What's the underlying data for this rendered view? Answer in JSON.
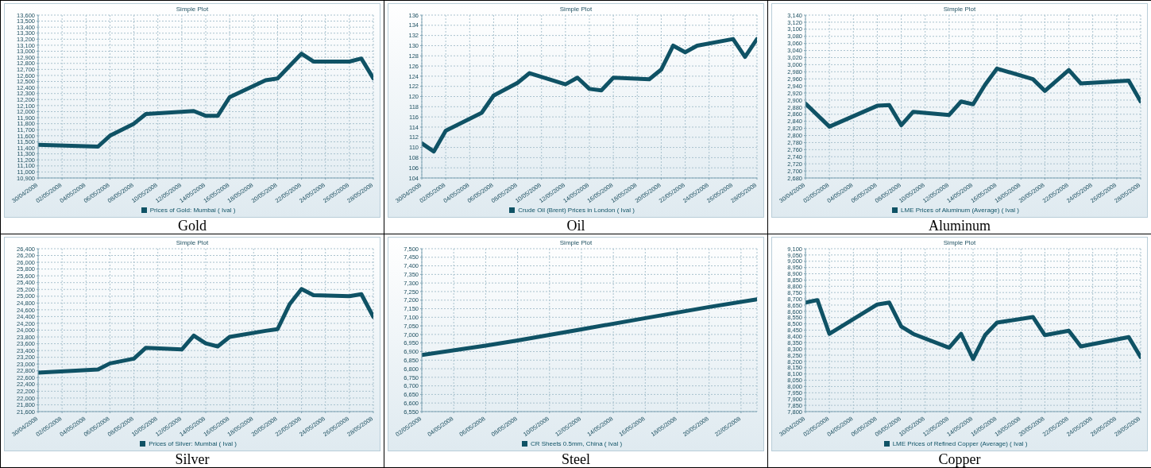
{
  "chart_data": [
    {
      "type": "line",
      "title": "Simple Plot",
      "annotations": [
        "Gold"
      ],
      "grid": true,
      "legend": "bottom",
      "x": [
        "2008-04-30",
        "2008-05-05",
        "2008-05-06",
        "2008-05-08",
        "2008-05-09",
        "2008-05-13",
        "2008-05-14",
        "2008-05-15",
        "2008-05-16",
        "2008-05-19",
        "2008-05-20",
        "2008-05-22",
        "2008-05-23",
        "2008-05-26",
        "2008-05-27",
        "2008-05-28"
      ],
      "series": [
        {
          "name": "Prices of Gold: Mumbai ( Ival )",
          "color": "#0f5265",
          "values": [
            11450,
            11420,
            11600,
            11800,
            11960,
            12010,
            11930,
            11930,
            12240,
            12520,
            12550,
            12960,
            12830,
            12830,
            12880,
            12550
          ]
        }
      ],
      "xlim": [
        "2008-04-30",
        "2008-05-28"
      ],
      "xticks": [
        {
          "value": "2008-04-30",
          "label": "30/04/2008"
        },
        {
          "value": "2008-05-02",
          "label": "02/05/2008"
        },
        {
          "value": "2008-05-04",
          "label": "04/05/2008"
        },
        {
          "value": "2008-05-06",
          "label": "06/05/2008"
        },
        {
          "value": "2008-05-08",
          "label": "08/05/2008"
        },
        {
          "value": "2008-05-10",
          "label": "10/05/2008"
        },
        {
          "value": "2008-05-12",
          "label": "12/05/2008"
        },
        {
          "value": "2008-05-14",
          "label": "14/05/2008"
        },
        {
          "value": "2008-05-16",
          "label": "16/05/2008"
        },
        {
          "value": "2008-05-18",
          "label": "18/05/2008"
        },
        {
          "value": "2008-05-20",
          "label": "20/05/2008"
        },
        {
          "value": "2008-05-22",
          "label": "22/05/2008"
        },
        {
          "value": "2008-05-24",
          "label": "24/05/2008"
        },
        {
          "value": "2008-05-26",
          "label": "26/05/2008"
        },
        {
          "value": "2008-05-28",
          "label": "28/05/2008"
        }
      ],
      "ylim": [
        10900,
        13600
      ],
      "yticks": [
        {
          "value": 10900,
          "label": "10,900"
        },
        {
          "value": 11000,
          "label": "11,000"
        },
        {
          "value": 11100,
          "label": "11,100"
        },
        {
          "value": 11200,
          "label": "11,200"
        },
        {
          "value": 11300,
          "label": "11,300"
        },
        {
          "value": 11400,
          "label": "11,400"
        },
        {
          "value": 11500,
          "label": "11,500"
        },
        {
          "value": 11600,
          "label": "11,600"
        },
        {
          "value": 11700,
          "label": "11,700"
        },
        {
          "value": 11800,
          "label": "11,800"
        },
        {
          "value": 11900,
          "label": "11,900"
        },
        {
          "value": 12000,
          "label": "12,000"
        },
        {
          "value": 12100,
          "label": "12,100"
        },
        {
          "value": 12200,
          "label": "12,200"
        },
        {
          "value": 12300,
          "label": "12,300"
        },
        {
          "value": 12400,
          "label": "12,400"
        },
        {
          "value": 12500,
          "label": "12,500"
        },
        {
          "value": 12600,
          "label": "12,600"
        },
        {
          "value": 12700,
          "label": "12,700"
        },
        {
          "value": 12800,
          "label": "12,800"
        },
        {
          "value": 12900,
          "label": "12,900"
        },
        {
          "value": 13000,
          "label": "13,000"
        },
        {
          "value": 13100,
          "label": "13,100"
        },
        {
          "value": 13200,
          "label": "13,200"
        },
        {
          "value": 13300,
          "label": "13,300"
        },
        {
          "value": 13400,
          "label": "13,400"
        },
        {
          "value": 13500,
          "label": "13,500"
        },
        {
          "value": 13600,
          "label": "13,600"
        }
      ]
    },
    {
      "type": "line",
      "title": "Simple Plot",
      "annotations": [
        "Oil"
      ],
      "grid": true,
      "legend": "bottom",
      "x": [
        "2008-04-30",
        "2008-05-01",
        "2008-05-02",
        "2008-05-05",
        "2008-05-06",
        "2008-05-08",
        "2008-05-09",
        "2008-05-12",
        "2008-05-13",
        "2008-05-14",
        "2008-05-15",
        "2008-05-16",
        "2008-05-19",
        "2008-05-20",
        "2008-05-21",
        "2008-05-22",
        "2008-05-23",
        "2008-05-26",
        "2008-05-27",
        "2008-05-28"
      ],
      "series": [
        {
          "name": "Crude Oil (Brent) Prices in London ( Ival )",
          "color": "#0f5265",
          "values": [
            110.8,
            109.2,
            113.3,
            116.8,
            120.2,
            122.7,
            124.6,
            122.4,
            123.7,
            121.5,
            121.2,
            123.7,
            123.4,
            125.3,
            130.0,
            128.7,
            130.0,
            131.3,
            127.8,
            131.3
          ]
        }
      ],
      "xlim": [
        "2008-04-30",
        "2008-05-28"
      ],
      "xticks": [
        {
          "value": "2008-04-30",
          "label": "30/04/2008"
        },
        {
          "value": "2008-05-02",
          "label": "02/05/2008"
        },
        {
          "value": "2008-05-04",
          "label": "04/05/2008"
        },
        {
          "value": "2008-05-06",
          "label": "06/05/2008"
        },
        {
          "value": "2008-05-08",
          "label": "08/05/2008"
        },
        {
          "value": "2008-05-10",
          "label": "10/05/2008"
        },
        {
          "value": "2008-05-12",
          "label": "12/05/2008"
        },
        {
          "value": "2008-05-14",
          "label": "14/05/2008"
        },
        {
          "value": "2008-05-16",
          "label": "16/05/2008"
        },
        {
          "value": "2008-05-18",
          "label": "18/05/2008"
        },
        {
          "value": "2008-05-20",
          "label": "20/05/2008"
        },
        {
          "value": "2008-05-22",
          "label": "22/05/2008"
        },
        {
          "value": "2008-05-24",
          "label": "24/05/2008"
        },
        {
          "value": "2008-05-26",
          "label": "26/05/2008"
        },
        {
          "value": "2008-05-28",
          "label": "28/05/2008"
        }
      ],
      "ylim": [
        104,
        136
      ],
      "yticks": [
        104,
        106,
        108,
        110,
        112,
        114,
        116,
        118,
        120,
        122,
        124,
        126,
        128,
        130,
        132,
        134,
        136
      ]
    },
    {
      "type": "line",
      "title": "Simple Plot",
      "annotations": [
        "Aluminum"
      ],
      "grid": true,
      "legend": "bottom",
      "x": [
        "2008-04-30",
        "2008-05-02",
        "2008-05-06",
        "2008-05-07",
        "2008-05-08",
        "2008-05-09",
        "2008-05-12",
        "2008-05-13",
        "2008-05-14",
        "2008-05-15",
        "2008-05-16",
        "2008-05-19",
        "2008-05-20",
        "2008-05-22",
        "2008-05-23",
        "2008-05-27",
        "2008-05-28"
      ],
      "series": [
        {
          "name": "LME Prices of Aluminum (Average) ( Ival )",
          "color": "#0f5265",
          "values": [
            2890,
            2825,
            2884,
            2886,
            2829,
            2867,
            2858,
            2896,
            2888,
            2943,
            2989,
            2959,
            2926,
            2985,
            2947,
            2955,
            2896
          ]
        }
      ],
      "xlim": [
        "2008-04-30",
        "2008-05-28"
      ],
      "xticks": [
        {
          "value": "2008-04-30",
          "label": "30/04/2008"
        },
        {
          "value": "2008-05-02",
          "label": "02/05/2008"
        },
        {
          "value": "2008-05-04",
          "label": "04/05/2008"
        },
        {
          "value": "2008-05-06",
          "label": "06/05/2008"
        },
        {
          "value": "2008-05-08",
          "label": "08/05/2008"
        },
        {
          "value": "2008-05-10",
          "label": "10/05/2008"
        },
        {
          "value": "2008-05-12",
          "label": "12/05/2008"
        },
        {
          "value": "2008-05-14",
          "label": "14/05/2008"
        },
        {
          "value": "2008-05-16",
          "label": "16/05/2008"
        },
        {
          "value": "2008-05-18",
          "label": "18/05/2008"
        },
        {
          "value": "2008-05-20",
          "label": "20/05/2008"
        },
        {
          "value": "2008-05-22",
          "label": "22/05/2008"
        },
        {
          "value": "2008-05-24",
          "label": "24/05/2008"
        },
        {
          "value": "2008-05-26",
          "label": "26/05/2008"
        },
        {
          "value": "2008-05-28",
          "label": "28/05/2008"
        }
      ],
      "ylim": [
        2680,
        3140
      ],
      "yticks": [
        {
          "value": 2680,
          "label": "2,680"
        },
        {
          "value": 2700,
          "label": "2,700"
        },
        {
          "value": 2720,
          "label": "2,720"
        },
        {
          "value": 2740,
          "label": "2,740"
        },
        {
          "value": 2760,
          "label": "2,760"
        },
        {
          "value": 2780,
          "label": "2,780"
        },
        {
          "value": 2800,
          "label": "2,800"
        },
        {
          "value": 2820,
          "label": "2,820"
        },
        {
          "value": 2840,
          "label": "2,840"
        },
        {
          "value": 2860,
          "label": "2,860"
        },
        {
          "value": 2880,
          "label": "2,880"
        },
        {
          "value": 2900,
          "label": "2,900"
        },
        {
          "value": 2920,
          "label": "2,920"
        },
        {
          "value": 2940,
          "label": "2,940"
        },
        {
          "value": 2960,
          "label": "2,960"
        },
        {
          "value": 2980,
          "label": "2,980"
        },
        {
          "value": 3000,
          "label": "3,000"
        },
        {
          "value": 3020,
          "label": "3,020"
        },
        {
          "value": 3040,
          "label": "3,040"
        },
        {
          "value": 3060,
          "label": "3,060"
        },
        {
          "value": 3080,
          "label": "3,080"
        },
        {
          "value": 3100,
          "label": "3,100"
        },
        {
          "value": 3120,
          "label": "3,120"
        },
        {
          "value": 3140,
          "label": "3,140"
        }
      ]
    },
    {
      "type": "line",
      "title": "Simple Plot",
      "annotations": [
        "Silver"
      ],
      "grid": true,
      "legend": "bottom",
      "x": [
        "2008-04-30",
        "2008-05-05",
        "2008-05-06",
        "2008-05-08",
        "2008-05-09",
        "2008-05-12",
        "2008-05-13",
        "2008-05-14",
        "2008-05-15",
        "2008-05-16",
        "2008-05-19",
        "2008-05-20",
        "2008-05-21",
        "2008-05-22",
        "2008-05-23",
        "2008-05-26",
        "2008-05-27",
        "2008-05-28"
      ],
      "series": [
        {
          "name": "Prices of Silver: Mumbai ( Ival )",
          "color": "#0f5265",
          "values": [
            22750,
            22840,
            23020,
            23160,
            23480,
            23430,
            23840,
            23610,
            23520,
            23800,
            23980,
            24030,
            24760,
            25210,
            25030,
            25000,
            25060,
            24390
          ]
        }
      ],
      "xlim": [
        "2008-04-30",
        "2008-05-28"
      ],
      "xticks": [
        {
          "value": "2008-04-30",
          "label": "30/04/2008"
        },
        {
          "value": "2008-05-02",
          "label": "02/05/2008"
        },
        {
          "value": "2008-05-04",
          "label": "04/05/2008"
        },
        {
          "value": "2008-05-06",
          "label": "06/05/2008"
        },
        {
          "value": "2008-05-08",
          "label": "08/05/2008"
        },
        {
          "value": "2008-05-10",
          "label": "10/05/2008"
        },
        {
          "value": "2008-05-12",
          "label": "12/05/2008"
        },
        {
          "value": "2008-05-14",
          "label": "14/05/2008"
        },
        {
          "value": "2008-05-16",
          "label": "16/05/2008"
        },
        {
          "value": "2008-05-18",
          "label": "18/05/2008"
        },
        {
          "value": "2008-05-20",
          "label": "20/05/2008"
        },
        {
          "value": "2008-05-22",
          "label": "22/05/2008"
        },
        {
          "value": "2008-05-24",
          "label": "24/05/2008"
        },
        {
          "value": "2008-05-26",
          "label": "26/05/2008"
        },
        {
          "value": "2008-05-28",
          "label": "28/05/2008"
        }
      ],
      "ylim": [
        21600,
        26400
      ],
      "yticks": [
        {
          "value": 21600,
          "label": "21,600"
        },
        {
          "value": 21800,
          "label": "21,800"
        },
        {
          "value": 22000,
          "label": "22,000"
        },
        {
          "value": 22200,
          "label": "22,200"
        },
        {
          "value": 22400,
          "label": "22,400"
        },
        {
          "value": 22600,
          "label": "22,600"
        },
        {
          "value": 22800,
          "label": "22,800"
        },
        {
          "value": 23000,
          "label": "23,000"
        },
        {
          "value": 23200,
          "label": "23,200"
        },
        {
          "value": 23400,
          "label": "23,400"
        },
        {
          "value": 23600,
          "label": "23,600"
        },
        {
          "value": 23800,
          "label": "23,800"
        },
        {
          "value": 24000,
          "label": "24,000"
        },
        {
          "value": 24200,
          "label": "24,200"
        },
        {
          "value": 24400,
          "label": "24,400"
        },
        {
          "value": 24600,
          "label": "24,600"
        },
        {
          "value": 24800,
          "label": "24,800"
        },
        {
          "value": 25000,
          "label": "25,000"
        },
        {
          "value": 25200,
          "label": "25,200"
        },
        {
          "value": 25400,
          "label": "25,400"
        },
        {
          "value": 25600,
          "label": "25,600"
        },
        {
          "value": 25800,
          "label": "25,800"
        },
        {
          "value": 26000,
          "label": "26,000"
        },
        {
          "value": 26200,
          "label": "26,200"
        },
        {
          "value": 26400,
          "label": "26,400"
        }
      ]
    },
    {
      "type": "line",
      "title": "Simple Plot",
      "annotations": [
        "Steel"
      ],
      "grid": true,
      "legend": "bottom",
      "x": [
        "2008-05-02",
        "2008-05-06",
        "2008-05-08",
        "2008-05-12",
        "2008-05-16",
        "2008-05-20",
        "2008-05-23"
      ],
      "series": [
        {
          "name": "CR Sheets 0.5mm, China ( Ival )",
          "color": "#0f5265",
          "values": [
            6880,
            6935,
            6965,
            7030,
            7095,
            7160,
            7205
          ]
        }
      ],
      "xlim": [
        "2008-05-02",
        "2008-05-23"
      ],
      "xticks": [
        {
          "value": "2008-05-02",
          "label": "02/05/2008"
        },
        {
          "value": "2008-05-04",
          "label": "04/05/2008"
        },
        {
          "value": "2008-05-06",
          "label": "06/05/2008"
        },
        {
          "value": "2008-05-08",
          "label": "08/05/2008"
        },
        {
          "value": "2008-05-10",
          "label": "10/05/2008"
        },
        {
          "value": "2008-05-12",
          "label": "12/05/2008"
        },
        {
          "value": "2008-05-14",
          "label": "14/05/2008"
        },
        {
          "value": "2008-05-16",
          "label": "16/05/2008"
        },
        {
          "value": "2008-05-18",
          "label": "18/05/2008"
        },
        {
          "value": "2008-05-20",
          "label": "20/05/2008"
        },
        {
          "value": "2008-05-22",
          "label": "22/05/2008"
        }
      ],
      "ylim": [
        6550,
        7500
      ],
      "yticks": [
        {
          "value": 6550,
          "label": "6,550"
        },
        {
          "value": 6600,
          "label": "6,600"
        },
        {
          "value": 6650,
          "label": "6,650"
        },
        {
          "value": 6700,
          "label": "6,700"
        },
        {
          "value": 6750,
          "label": "6,750"
        },
        {
          "value": 6800,
          "label": "6,800"
        },
        {
          "value": 6850,
          "label": "6,850"
        },
        {
          "value": 6900,
          "label": "6,900"
        },
        {
          "value": 6950,
          "label": "6,950"
        },
        {
          "value": 7000,
          "label": "7,000"
        },
        {
          "value": 7050,
          "label": "7,050"
        },
        {
          "value": 7100,
          "label": "7,100"
        },
        {
          "value": 7150,
          "label": "7,150"
        },
        {
          "value": 7200,
          "label": "7,200"
        },
        {
          "value": 7250,
          "label": "7,250"
        },
        {
          "value": 7300,
          "label": "7,300"
        },
        {
          "value": 7350,
          "label": "7,350"
        },
        {
          "value": 7400,
          "label": "7,400"
        },
        {
          "value": 7450,
          "label": "7,450"
        },
        {
          "value": 7500,
          "label": "7,500"
        }
      ]
    },
    {
      "type": "line",
      "title": "Simple Plot",
      "annotations": [
        "Copper"
      ],
      "grid": true,
      "legend": "bottom",
      "x": [
        "2008-04-30",
        "2008-05-01",
        "2008-05-02",
        "2008-05-06",
        "2008-05-07",
        "2008-05-08",
        "2008-05-09",
        "2008-05-12",
        "2008-05-13",
        "2008-05-14",
        "2008-05-15",
        "2008-05-16",
        "2008-05-19",
        "2008-05-20",
        "2008-05-22",
        "2008-05-23",
        "2008-05-27",
        "2008-05-28"
      ],
      "series": [
        {
          "name": "LME Prices of Refined Copper (Average) ( Ival )",
          "color": "#0f5265",
          "values": [
            8670,
            8690,
            8420,
            8655,
            8670,
            8480,
            8420,
            8310,
            8420,
            8220,
            8410,
            8510,
            8555,
            8410,
            8445,
            8320,
            8395,
            8235
          ]
        }
      ],
      "xlim": [
        "2008-04-30",
        "2008-05-28"
      ],
      "xticks": [
        {
          "value": "2008-04-30",
          "label": "30/04/2008"
        },
        {
          "value": "2008-05-02",
          "label": "02/05/2008"
        },
        {
          "value": "2008-05-04",
          "label": "04/05/2008"
        },
        {
          "value": "2008-05-06",
          "label": "06/05/2008"
        },
        {
          "value": "2008-05-08",
          "label": "08/05/2008"
        },
        {
          "value": "2008-05-10",
          "label": "10/05/2008"
        },
        {
          "value": "2008-05-12",
          "label": "12/05/2008"
        },
        {
          "value": "2008-05-14",
          "label": "14/05/2008"
        },
        {
          "value": "2008-05-16",
          "label": "16/05/2008"
        },
        {
          "value": "2008-05-18",
          "label": "18/05/2008"
        },
        {
          "value": "2008-05-20",
          "label": "20/05/2008"
        },
        {
          "value": "2008-05-22",
          "label": "22/05/2008"
        },
        {
          "value": "2008-05-24",
          "label": "24/05/2008"
        },
        {
          "value": "2008-05-26",
          "label": "26/05/2008"
        },
        {
          "value": "2008-05-28",
          "label": "28/05/2008"
        }
      ],
      "ylim": [
        7800,
        9100
      ],
      "yticks": [
        {
          "value": 7800,
          "label": "7,800"
        },
        {
          "value": 7850,
          "label": "7,850"
        },
        {
          "value": 7900,
          "label": "7,900"
        },
        {
          "value": 7950,
          "label": "7,950"
        },
        {
          "value": 8000,
          "label": "8,000"
        },
        {
          "value": 8050,
          "label": "8,050"
        },
        {
          "value": 8100,
          "label": "8,100"
        },
        {
          "value": 8150,
          "label": "8,150"
        },
        {
          "value": 8200,
          "label": "8,200"
        },
        {
          "value": 8250,
          "label": "8,250"
        },
        {
          "value": 8300,
          "label": "8,300"
        },
        {
          "value": 8350,
          "label": "8,350"
        },
        {
          "value": 8400,
          "label": "8,400"
        },
        {
          "value": 8450,
          "label": "8,450"
        },
        {
          "value": 8500,
          "label": "8,500"
        },
        {
          "value": 8550,
          "label": "8,550"
        },
        {
          "value": 8600,
          "label": "8,600"
        },
        {
          "value": 8650,
          "label": "8,650"
        },
        {
          "value": 8700,
          "label": "8,700"
        },
        {
          "value": 8750,
          "label": "8,750"
        },
        {
          "value": 8800,
          "label": "8,800"
        },
        {
          "value": 8850,
          "label": "8,850"
        },
        {
          "value": 8900,
          "label": "8,900"
        },
        {
          "value": 8950,
          "label": "8,950"
        },
        {
          "value": 9000,
          "label": "9,000"
        },
        {
          "value": 9050,
          "label": "9,050"
        },
        {
          "value": 9100,
          "label": "9,100"
        }
      ]
    }
  ]
}
